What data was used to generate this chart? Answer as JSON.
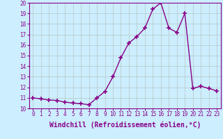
{
  "x": [
    0,
    1,
    2,
    3,
    4,
    5,
    6,
    7,
    8,
    9,
    10,
    11,
    12,
    13,
    14,
    15,
    16,
    17,
    18,
    19,
    20,
    21,
    22,
    23
  ],
  "y": [
    11.0,
    10.9,
    10.8,
    10.75,
    10.6,
    10.5,
    10.45,
    10.35,
    11.0,
    11.6,
    13.0,
    14.8,
    16.2,
    16.8,
    17.6,
    19.4,
    20.0,
    17.6,
    17.2,
    19.0,
    11.9,
    12.1,
    11.9,
    11.65
  ],
  "xlim": [
    -0.5,
    23.5
  ],
  "ylim": [
    10,
    20
  ],
  "yticks": [
    10,
    11,
    12,
    13,
    14,
    15,
    16,
    17,
    18,
    19,
    20
  ],
  "xticks": [
    0,
    1,
    2,
    3,
    4,
    5,
    6,
    7,
    8,
    9,
    10,
    11,
    12,
    13,
    14,
    15,
    16,
    17,
    18,
    19,
    20,
    21,
    22,
    23
  ],
  "xlabel": "Windchill (Refroidissement éolien,°C)",
  "line_color": "#880088",
  "marker": "+",
  "marker_size": 4,
  "marker_lw": 1.2,
  "line_width": 1.0,
  "bg_color": "#cceeff",
  "grid_color": "#bbcccc",
  "tick_label_fontsize": 5.5,
  "xlabel_fontsize": 7.0,
  "spine_color": "#880088"
}
